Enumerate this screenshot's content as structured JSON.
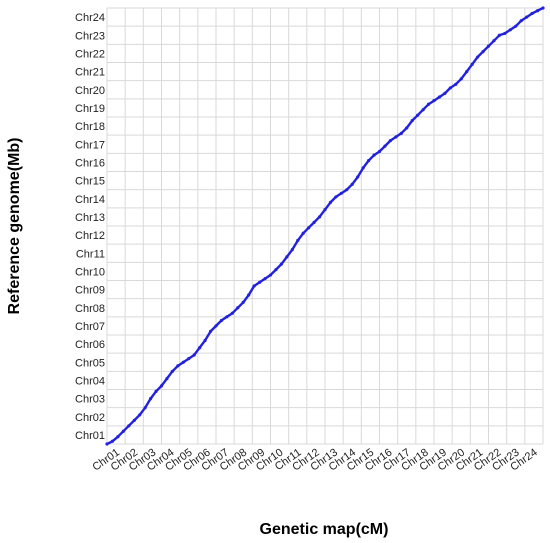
{
  "chart_data": {
    "type": "scatter",
    "title": "",
    "xlabel": "Genetic map(cM)",
    "ylabel": "Reference genome(Mb)",
    "x_categories": [
      "Chr01",
      "Chr02",
      "Chr03",
      "Chr04",
      "Chr05",
      "Chr06",
      "Chr07",
      "Chr08",
      "Chr09",
      "Chr10",
      "Chr11",
      "Chr12",
      "Chr13",
      "Chr14",
      "Chr15",
      "Chr16",
      "Chr17",
      "Chr18",
      "Chr19",
      "Chr20",
      "Chr21",
      "Chr22",
      "Chr23",
      "Chr24"
    ],
    "y_categories": [
      "Chr01",
      "Chr02",
      "Chr03",
      "Chr04",
      "Chr05",
      "Chr06",
      "Chr07",
      "Chr08",
      "Chr09",
      "Chr10",
      "Chr11",
      "Chr12",
      "Chr13",
      "Chr14",
      "Chr15",
      "Chr16",
      "Chr17",
      "Chr18",
      "Chr19",
      "Chr20",
      "Chr21",
      "Chr22",
      "Chr23",
      "Chr24"
    ],
    "grid": true,
    "point_color": "#2222dd",
    "series": [
      {
        "x": [
          0.0,
          0.3,
          0.6,
          0.9,
          1.2,
          1.5,
          1.8,
          2.1,
          2.4,
          2.7,
          3.0,
          3.3,
          3.6,
          3.9,
          4.2,
          4.5,
          4.8,
          5.1,
          5.4,
          5.7,
          6.0,
          6.3,
          6.6,
          6.9,
          7.2,
          7.5,
          7.8,
          8.1,
          8.4,
          8.7,
          9.0,
          9.3,
          9.6,
          9.9,
          10.2,
          10.5,
          10.8,
          11.1,
          11.4,
          11.7,
          12.0,
          12.3,
          12.6,
          12.9,
          13.2,
          13.5,
          13.8,
          14.1,
          14.4,
          14.7,
          15.0,
          15.3,
          15.6,
          15.9,
          16.2,
          16.5,
          16.8,
          17.1,
          17.4,
          17.7,
          18.0,
          18.3,
          18.6,
          18.9,
          19.2,
          19.5,
          19.8,
          20.1,
          20.4,
          20.7,
          21.0,
          21.3,
          21.6,
          21.9,
          22.2,
          22.5,
          22.8,
          23.1,
          23.4,
          23.7,
          24.0
        ],
        "y": [
          0.0,
          0.15,
          0.4,
          0.7,
          1.0,
          1.3,
          1.6,
          2.0,
          2.5,
          2.9,
          3.2,
          3.6,
          4.0,
          4.3,
          4.5,
          4.7,
          4.9,
          5.3,
          5.7,
          6.2,
          6.5,
          6.8,
          7.0,
          7.2,
          7.5,
          7.8,
          8.2,
          8.7,
          8.9,
          9.1,
          9.3,
          9.6,
          9.9,
          10.3,
          10.7,
          11.2,
          11.6,
          11.9,
          12.2,
          12.5,
          12.9,
          13.3,
          13.6,
          13.8,
          14.0,
          14.3,
          14.7,
          15.2,
          15.6,
          15.9,
          16.1,
          16.4,
          16.7,
          16.9,
          17.1,
          17.4,
          17.8,
          18.1,
          18.4,
          18.7,
          18.9,
          19.1,
          19.3,
          19.6,
          19.8,
          20.1,
          20.5,
          20.9,
          21.3,
          21.6,
          21.9,
          22.2,
          22.5,
          22.6,
          22.8,
          23.0,
          23.3,
          23.5,
          23.7,
          23.85,
          24.0
        ]
      }
    ]
  }
}
